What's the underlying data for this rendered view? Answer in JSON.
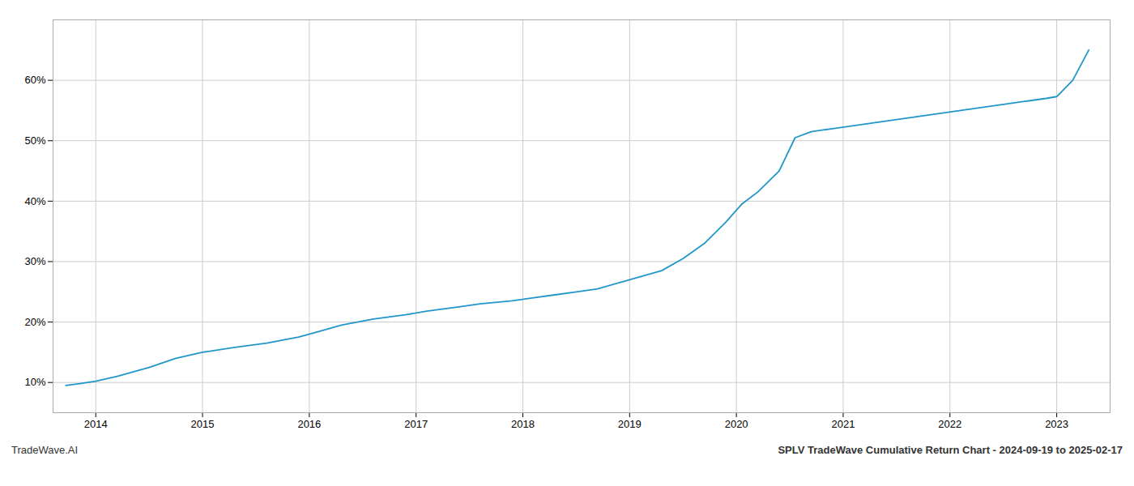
{
  "chart_data": {
    "type": "line",
    "title": "SPLV TradeWave Cumulative Return Chart - 2024-09-19 to 2025-02-17",
    "annotations": [
      "TradeWave.AI"
    ],
    "x": [
      2013.72,
      2013.85,
      2014.0,
      2014.2,
      2014.5,
      2014.75,
      2015.0,
      2015.3,
      2015.6,
      2015.9,
      2016.1,
      2016.3,
      2016.6,
      2016.9,
      2017.1,
      2017.4,
      2017.6,
      2017.9,
      2018.1,
      2018.3,
      2018.5,
      2018.7,
      2018.9,
      2019.1,
      2019.3,
      2019.5,
      2019.7,
      2019.9,
      2020.05,
      2020.2,
      2020.4,
      2020.55,
      2020.7,
      2020.9,
      2021.1,
      2021.3,
      2021.5,
      2021.7,
      2021.9,
      2022.1,
      2022.3,
      2022.5,
      2022.7,
      2022.9,
      2023.0,
      2023.15,
      2023.3
    ],
    "values": [
      9.5,
      9.8,
      10.2,
      11.0,
      12.5,
      14.0,
      15.0,
      15.8,
      16.5,
      17.5,
      18.5,
      19.5,
      20.5,
      21.2,
      21.8,
      22.5,
      23.0,
      23.5,
      24.0,
      24.5,
      25.0,
      25.5,
      26.5,
      27.5,
      28.5,
      30.5,
      33.0,
      36.5,
      39.5,
      41.5,
      45.0,
      50.5,
      51.5,
      52.0,
      52.5,
      53.0,
      53.5,
      54.0,
      54.5,
      55.0,
      55.5,
      56.0,
      56.5,
      57.0,
      57.3,
      60.0,
      65.0
    ],
    "color": "#2196c8",
    "xlim": [
      2013.6,
      2023.5
    ],
    "ylim": [
      5,
      70
    ],
    "xticks": [
      2014,
      2015,
      2016,
      2017,
      2018,
      2019,
      2020,
      2021,
      2022,
      2023
    ],
    "yticks": [
      {
        "value": 10,
        "label": "10%"
      },
      {
        "value": 20,
        "label": "20%"
      },
      {
        "value": 30,
        "label": "30%"
      },
      {
        "value": 40,
        "label": "40%"
      },
      {
        "value": 50,
        "label": "50%"
      },
      {
        "value": 60,
        "label": "60%"
      }
    ],
    "grid": true
  }
}
